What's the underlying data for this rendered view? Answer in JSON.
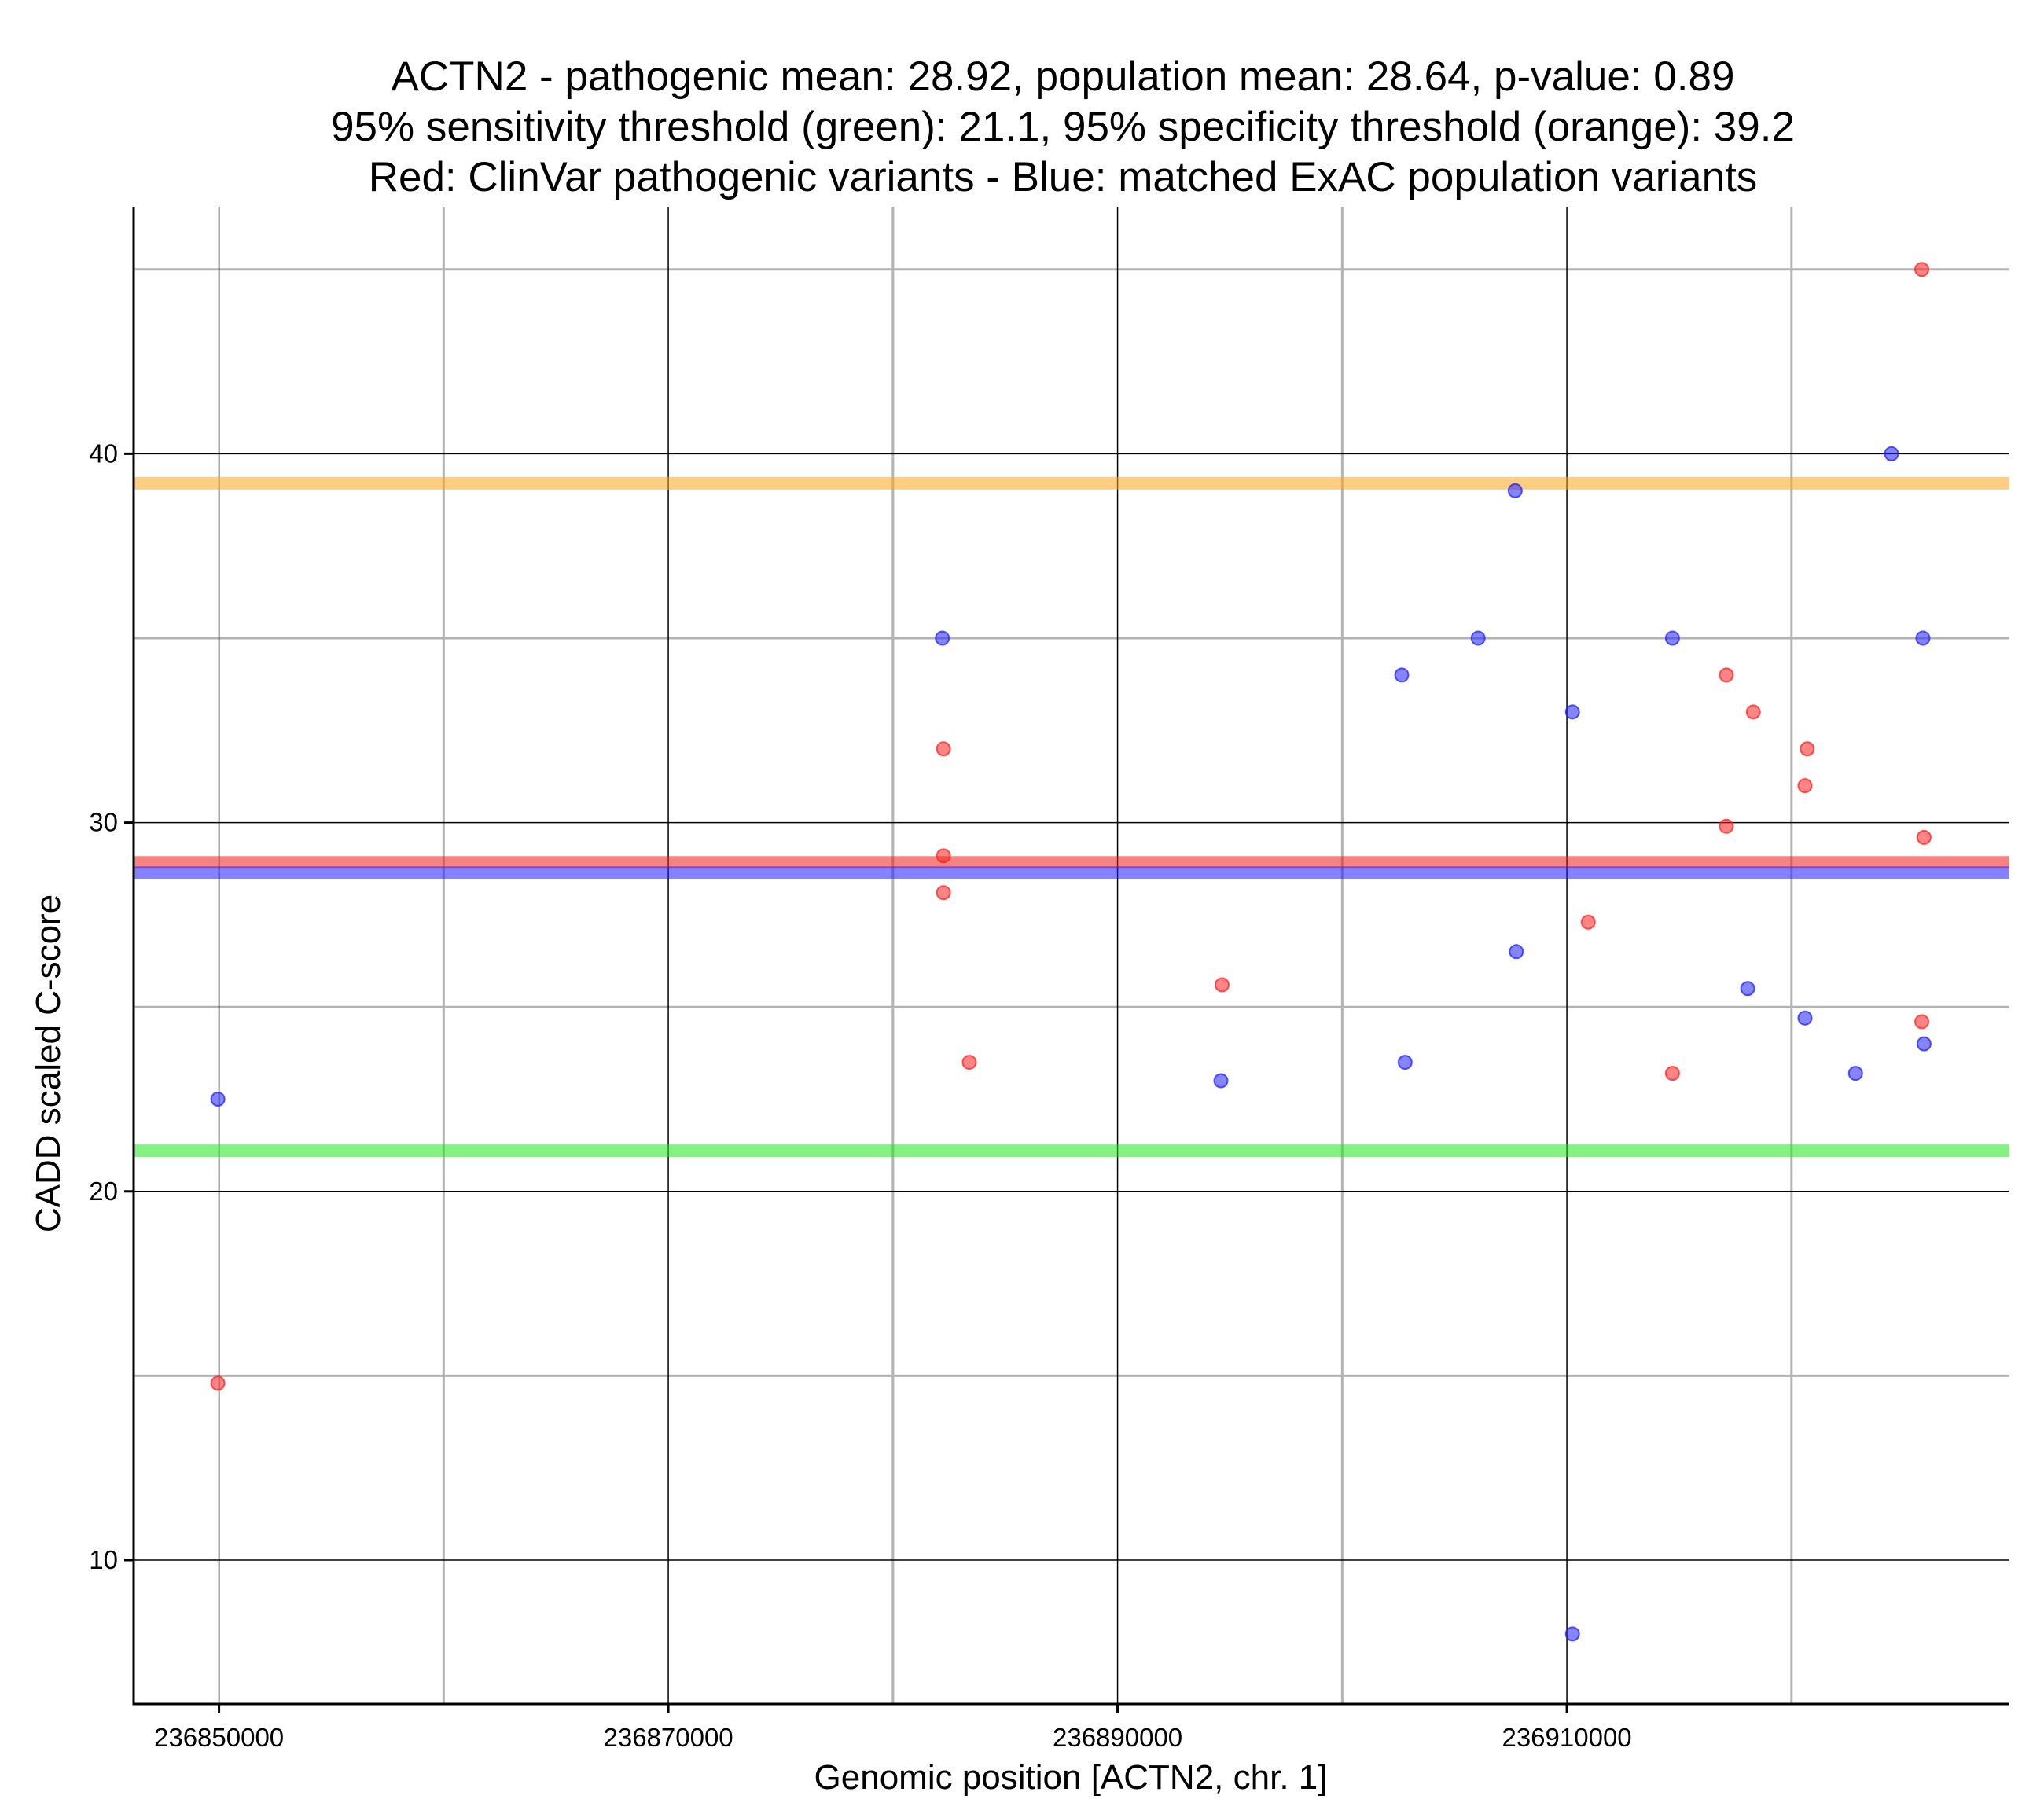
{
  "chart_data": {
    "type": "scatter",
    "title_lines": [
      "ACTN2 - pathogenic mean: 28.92, population mean: 28.64, p-value: 0.89",
      "95% sensitivity threshold (green): 21.1, 95% specificity threshold (orange): 39.2",
      "Red: ClinVar pathogenic variants - Blue: matched ExAC population variants"
    ],
    "xlabel": "Genomic position [ACTN2, chr. 1]",
    "ylabel": "CADD scaled C-score",
    "xlim": [
      236846200,
      236929700
    ],
    "ylim": [
      6.1,
      46.7
    ],
    "x_major_ticks": [
      236850000,
      236870000,
      236890000,
      236910000
    ],
    "x_major_tick_labels": [
      "236850000",
      "236870000",
      "236890000",
      "236910000"
    ],
    "x_minor_gridlines": [
      236860000,
      236880000,
      236900000,
      236920000
    ],
    "y_major_ticks": [
      10,
      20,
      30,
      40
    ],
    "y_major_tick_labels": [
      "10",
      "20",
      "30",
      "40"
    ],
    "y_minor_gridlines": [
      15,
      25,
      35,
      45
    ],
    "reference_lines": [
      {
        "name": "95% specificity threshold",
        "value": 39.2,
        "color": "#FFA51E"
      },
      {
        "name": "pathogenic mean",
        "value": 28.92,
        "color": "#EE1C1C"
      },
      {
        "name": "population mean",
        "value": 28.64,
        "color": "#1E1EFF"
      },
      {
        "name": "95% sensitivity threshold",
        "value": 21.1,
        "color": "#1EE81E"
      }
    ],
    "series": [
      {
        "name": "ClinVar pathogenic variants",
        "color": "#FF2020",
        "points": [
          [
            236849950,
            14.8
          ],
          [
            236882250,
            32.0
          ],
          [
            236882250,
            29.1
          ],
          [
            236882250,
            28.1
          ],
          [
            236883400,
            23.5
          ],
          [
            236894650,
            25.6
          ],
          [
            236910950,
            27.3
          ],
          [
            236914700,
            23.2
          ],
          [
            236917100,
            34.0
          ],
          [
            236917100,
            29.9
          ],
          [
            236918300,
            33.0
          ],
          [
            236920700,
            32.0
          ],
          [
            236920600,
            31.0
          ],
          [
            236925800,
            45.0
          ],
          [
            236925900,
            29.6
          ],
          [
            236925800,
            24.6
          ]
        ]
      },
      {
        "name": "matched ExAC population variants",
        "color": "#2020FF",
        "points": [
          [
            236849950,
            22.5
          ],
          [
            236882200,
            35.0
          ],
          [
            236894600,
            23.0
          ],
          [
            236902650,
            34.0
          ],
          [
            236902800,
            23.5
          ],
          [
            236906050,
            35.0
          ],
          [
            236907700,
            39.0
          ],
          [
            236907750,
            26.5
          ],
          [
            236910250,
            33.0
          ],
          [
            236910250,
            8.0
          ],
          [
            236914700,
            35.0
          ],
          [
            236918050,
            25.5
          ],
          [
            236920600,
            24.7
          ],
          [
            236922850,
            23.2
          ],
          [
            236924450,
            40.0
          ],
          [
            236925850,
            35.0
          ],
          [
            236925900,
            24.0
          ]
        ]
      }
    ]
  }
}
